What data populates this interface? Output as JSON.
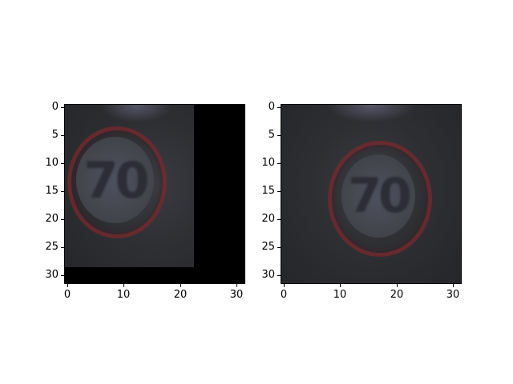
{
  "panels": [
    {
      "id": "left",
      "sign_text": "70",
      "xticks": [
        "0",
        "10",
        "20",
        "30"
      ],
      "yticks": [
        "0",
        "5",
        "10",
        "15",
        "20",
        "25",
        "30"
      ]
    },
    {
      "id": "right",
      "sign_text": "70",
      "xticks": [
        "0",
        "10",
        "20",
        "30"
      ],
      "yticks": [
        "0",
        "5",
        "10",
        "15",
        "20",
        "25",
        "30"
      ]
    }
  ],
  "colors": {
    "ring": "#78282d",
    "face": "#45474f",
    "background": "#2e2f33",
    "mask": "#000000"
  }
}
